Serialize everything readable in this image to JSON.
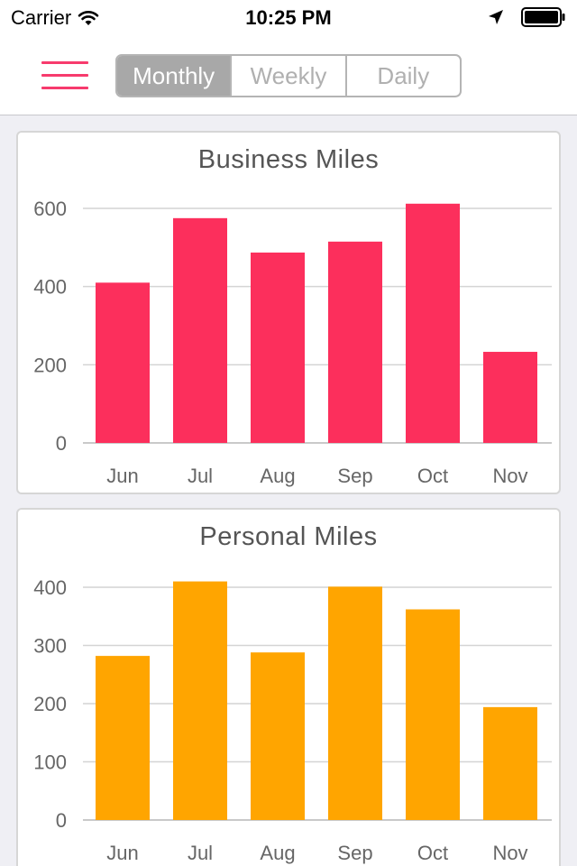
{
  "status_bar": {
    "carrier": "Carrier",
    "time": "10:25 PM",
    "icons": [
      "wifi-icon",
      "location-arrow-icon",
      "battery-icon"
    ]
  },
  "nav": {
    "menu_icon": "hamburger-menu-icon",
    "accent_color": "#f73b6d",
    "segments": [
      {
        "label": "Monthly",
        "selected": true
      },
      {
        "label": "Weekly",
        "selected": false
      },
      {
        "label": "Daily",
        "selected": false
      }
    ]
  },
  "chart_data": [
    {
      "type": "bar",
      "title": "Business Miles",
      "categories": [
        "Jun",
        "Jul",
        "Aug",
        "Sep",
        "Oct",
        "Nov"
      ],
      "values": [
        410,
        575,
        487,
        515,
        612,
        233
      ],
      "ylim": [
        0,
        600
      ],
      "yticks": [
        0,
        200,
        400,
        600
      ],
      "color": "#fc2f5c",
      "grid": true,
      "xlabel": "",
      "ylabel": ""
    },
    {
      "type": "bar",
      "title": "Personal Miles",
      "categories": [
        "Jun",
        "Jul",
        "Aug",
        "Sep",
        "Oct",
        "Nov"
      ],
      "values": [
        282,
        410,
        288,
        401,
        362,
        194
      ],
      "ylim": [
        0,
        400
      ],
      "yticks": [
        0,
        100,
        200,
        300,
        400
      ],
      "color": "#ffa500",
      "grid": true,
      "xlabel": "",
      "ylabel": ""
    }
  ]
}
